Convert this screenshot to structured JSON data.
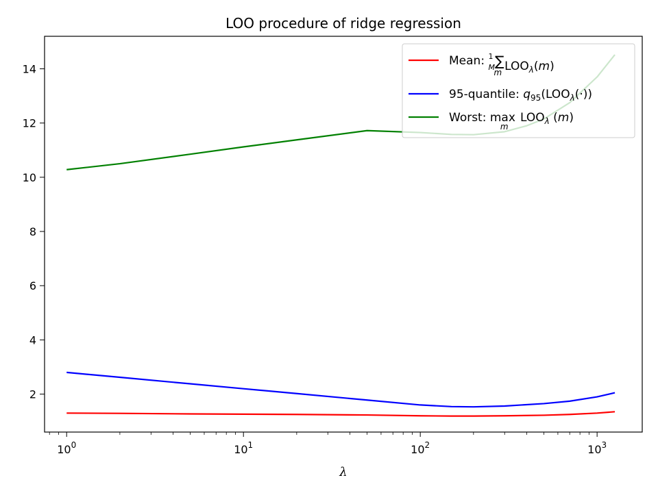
{
  "chart_data": {
    "type": "line",
    "title": "LOO procedure of ridge regression",
    "xlabel": "λ",
    "ylabel": "",
    "xscale": "log",
    "xlim": [
      0.75,
      1800
    ],
    "ylim": [
      0.6,
      15.2
    ],
    "yticks": [
      2,
      4,
      6,
      8,
      10,
      12,
      14
    ],
    "xticks": [
      {
        "value": 1,
        "base": "10",
        "exp": "0"
      },
      {
        "value": 10,
        "base": "10",
        "exp": "1"
      },
      {
        "value": 100,
        "base": "10",
        "exp": "2"
      },
      {
        "value": 1000,
        "base": "10",
        "exp": "3"
      }
    ],
    "grid": false,
    "legend_position": "upper-right",
    "series": [
      {
        "name": "Mean: (1/M)∑ₘ LOOλ(m)",
        "color": "#ff0000",
        "x": [
          1,
          2,
          5,
          10,
          20,
          50,
          100,
          150,
          200,
          300,
          500,
          700,
          1000,
          1260
        ],
        "y": [
          1.3,
          1.29,
          1.27,
          1.26,
          1.25,
          1.23,
          1.2,
          1.19,
          1.19,
          1.2,
          1.22,
          1.25,
          1.3,
          1.35
        ]
      },
      {
        "name": "95-quantile: q95(LOOλ(·))",
        "color": "#0000ff",
        "x": [
          1,
          2,
          5,
          10,
          20,
          50,
          100,
          150,
          200,
          300,
          500,
          700,
          1000,
          1260
        ],
        "y": [
          2.8,
          2.62,
          2.38,
          2.2,
          2.02,
          1.78,
          1.6,
          1.54,
          1.53,
          1.56,
          1.65,
          1.74,
          1.9,
          2.05
        ]
      },
      {
        "name": "Worst: maxₘ LOOλ(m)",
        "color": "#008000",
        "x": [
          1,
          2,
          5,
          10,
          20,
          50,
          100,
          150,
          200,
          300,
          400,
          500,
          700,
          1000,
          1260
        ],
        "y": [
          10.28,
          10.5,
          10.85,
          11.12,
          11.38,
          11.72,
          11.65,
          11.58,
          11.57,
          11.68,
          11.9,
          12.15,
          12.75,
          13.7,
          14.52
        ]
      }
    ]
  }
}
